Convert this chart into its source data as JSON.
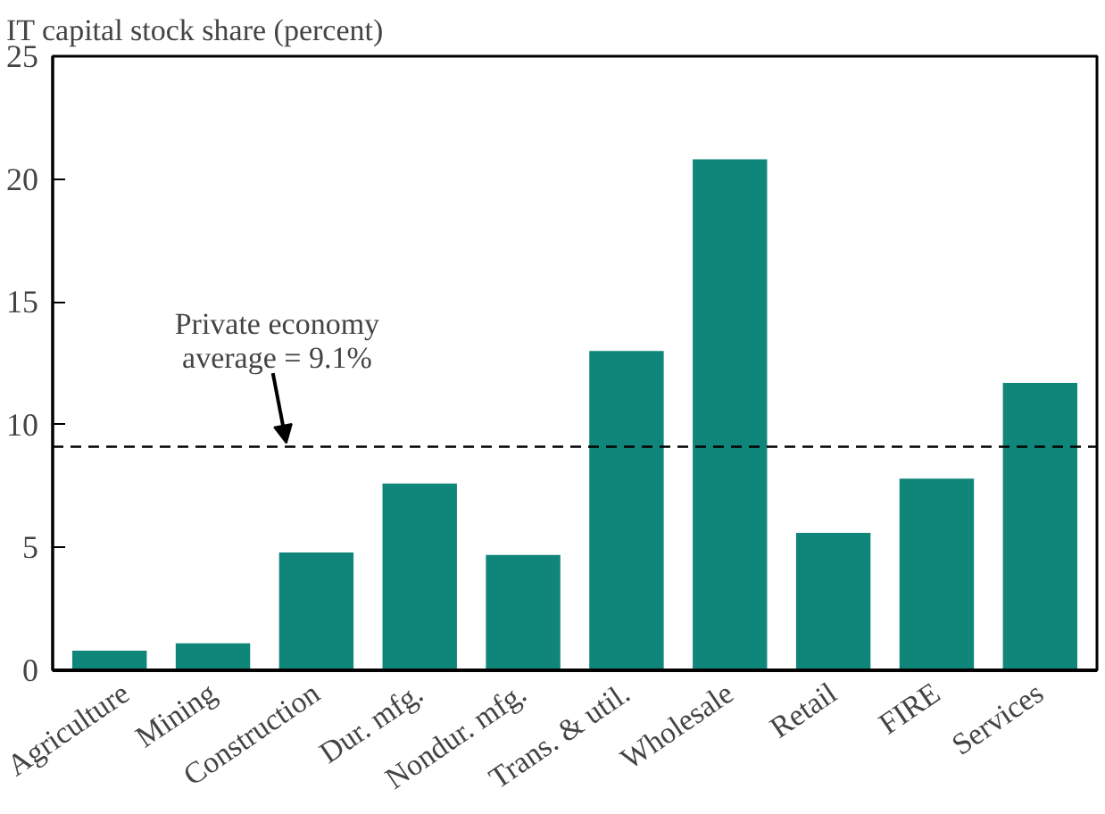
{
  "chart_data": {
    "type": "bar",
    "title": "IT capital stock share (percent)",
    "categories": [
      "Agriculture",
      "Mining",
      "Construction",
      "Dur. mfg.",
      "Nondur. mfg.",
      "Trans. & util.",
      "Wholesale",
      "Retail",
      "FIRE",
      "Services"
    ],
    "values": [
      0.8,
      1.1,
      4.8,
      7.6,
      4.7,
      13.0,
      20.8,
      5.6,
      7.8,
      11.7
    ],
    "color": "#10857a",
    "ylim": [
      0,
      25
    ],
    "yticks": [
      0,
      5,
      10,
      15,
      20,
      25
    ],
    "grid": false,
    "ref_lines": [
      {
        "axis": "y",
        "value": 9.1,
        "label": "Private economy\naverage = 9.1%",
        "line_style": "dashed",
        "color": "#000000"
      }
    ]
  }
}
